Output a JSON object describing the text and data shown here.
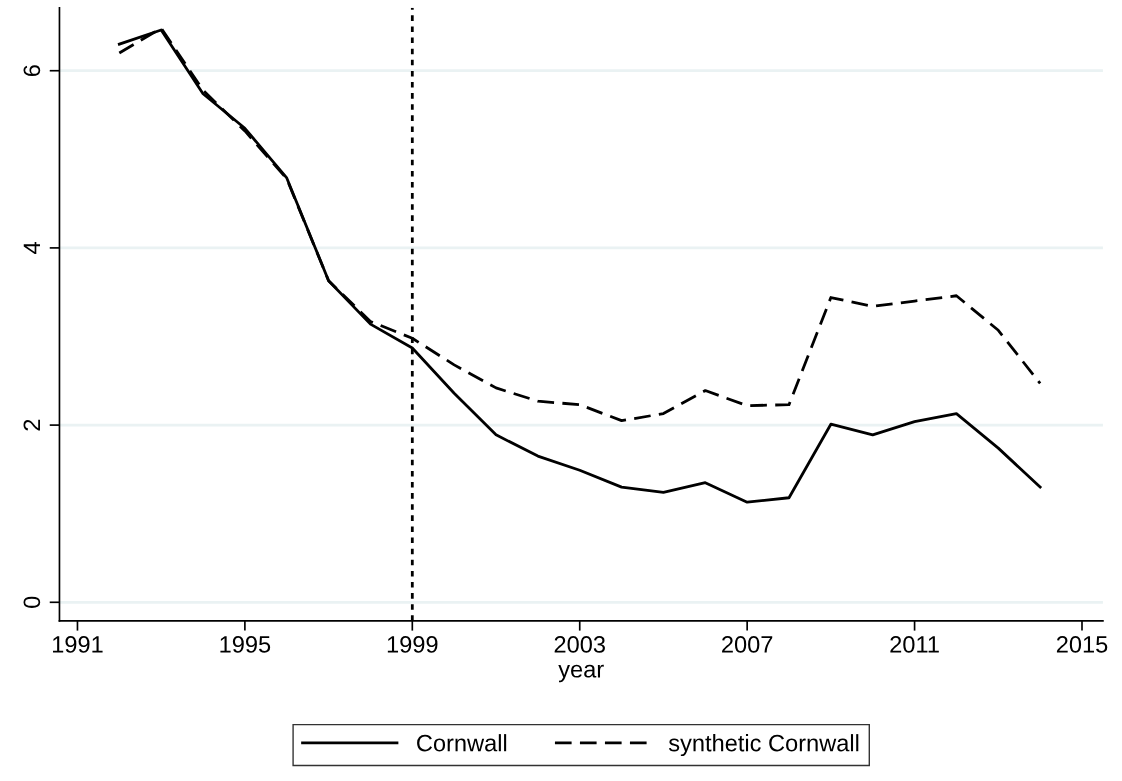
{
  "chart_data": {
    "type": "line",
    "xlabel": "year",
    "x": [
      1992,
      1993,
      1994,
      1995,
      1996,
      1997,
      1998,
      1999,
      2000,
      2001,
      2002,
      2003,
      2004,
      2005,
      2006,
      2007,
      2008,
      2009,
      2010,
      2011,
      2012,
      2013,
      2014
    ],
    "series": [
      {
        "name": "Cornwall",
        "color": "#000000",
        "line_style": "solid",
        "values": [
          6.3,
          6.46,
          5.74,
          5.35,
          4.79,
          3.63,
          3.14,
          2.87,
          2.36,
          1.89,
          1.65,
          1.49,
          1.3,
          1.24,
          1.35,
          1.13,
          1.18,
          2.01,
          1.89,
          2.04,
          2.13,
          1.74,
          1.3
        ]
      },
      {
        "name": "synthetic Cornwall",
        "color": "#000000",
        "line_style": "dashed",
        "values": [
          6.2,
          6.48,
          5.78,
          5.32,
          4.78,
          3.63,
          3.17,
          2.98,
          2.68,
          2.42,
          2.27,
          2.23,
          2.05,
          2.13,
          2.39,
          2.22,
          2.23,
          3.44,
          3.34,
          3.4,
          3.46,
          3.07,
          2.47
        ]
      }
    ],
    "xlim": [
      1990.57,
      2015.5
    ],
    "xticks": [
      1991,
      1995,
      1999,
      2003,
      2007,
      2011,
      2015
    ],
    "ylim": [
      -0.21,
      6.71
    ],
    "yticks": [
      0,
      2,
      4,
      6
    ],
    "ref_lines": [
      {
        "axis": "x",
        "value": 1999,
        "color": "#000000",
        "line_style": "dotted"
      }
    ],
    "grid": "y",
    "legend": "bottom"
  }
}
